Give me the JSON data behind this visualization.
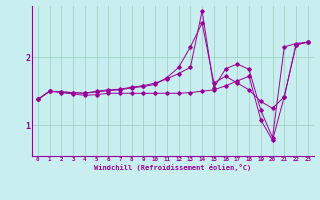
{
  "xlabel": "Windchill (Refroidissement éolien,°C)",
  "bg_color": "#c8eef0",
  "line_color": "#990099",
  "grid_color": "#99ccbb",
  "xlim": [
    -0.5,
    23.5
  ],
  "ylim": [
    0.55,
    2.75
  ],
  "yticks": [
    1,
    2
  ],
  "xticks": [
    0,
    1,
    2,
    3,
    4,
    5,
    6,
    7,
    8,
    9,
    10,
    11,
    12,
    13,
    14,
    15,
    16,
    17,
    18,
    19,
    20,
    21,
    22,
    23
  ],
  "line1_x": [
    0,
    1,
    2,
    3,
    4,
    5,
    6,
    7,
    8,
    9,
    10,
    11,
    12,
    13,
    14,
    15,
    16,
    17,
    18,
    19,
    20,
    21,
    22,
    23
  ],
  "line1_y": [
    1.38,
    1.5,
    1.49,
    1.48,
    1.47,
    1.5,
    1.52,
    1.53,
    1.56,
    1.58,
    1.62,
    1.68,
    1.76,
    1.85,
    2.68,
    1.55,
    1.83,
    1.9,
    1.82,
    1.22,
    0.82,
    2.15,
    2.2,
    2.22
  ],
  "line2_x": [
    0,
    1,
    2,
    3,
    4,
    5,
    6,
    7,
    8,
    9,
    10,
    11,
    12,
    13,
    14,
    15,
    16,
    17,
    18,
    19,
    20,
    21,
    22,
    23
  ],
  "line2_y": [
    1.38,
    1.5,
    1.49,
    1.48,
    1.47,
    1.49,
    1.51,
    1.52,
    1.55,
    1.57,
    1.6,
    1.7,
    1.85,
    2.15,
    2.5,
    1.62,
    1.72,
    1.62,
    1.52,
    1.35,
    1.25,
    1.42,
    2.18,
    2.22
  ],
  "line3_x": [
    0,
    1,
    2,
    3,
    4,
    5,
    6,
    7,
    8,
    9,
    10,
    11,
    12,
    13,
    14,
    15,
    16,
    17,
    18,
    19,
    20,
    21,
    22,
    23
  ],
  "line3_y": [
    1.38,
    1.5,
    1.48,
    1.46,
    1.44,
    1.45,
    1.47,
    1.47,
    1.47,
    1.47,
    1.47,
    1.47,
    1.47,
    1.48,
    1.5,
    1.52,
    1.58,
    1.65,
    1.72,
    1.08,
    0.78,
    1.42,
    2.18,
    2.22
  ]
}
